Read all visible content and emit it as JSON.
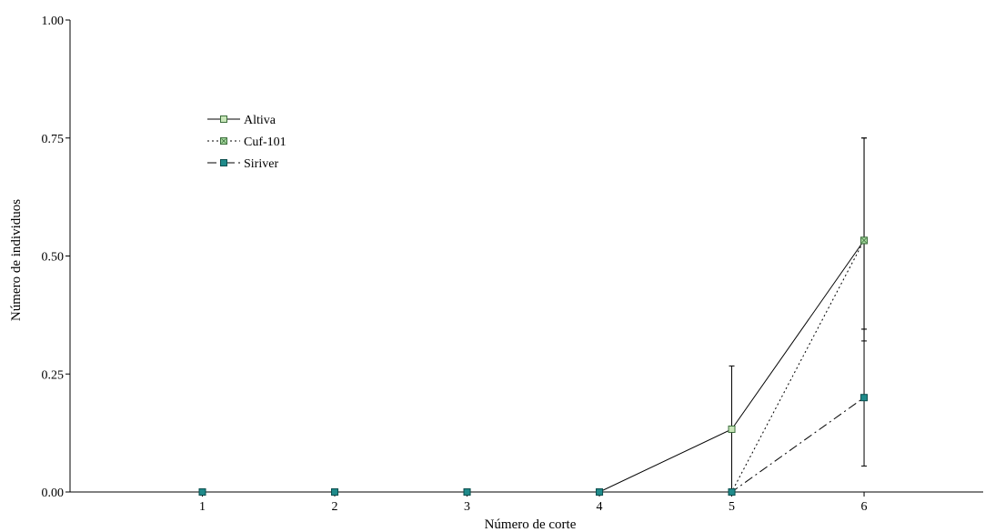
{
  "chart_data": {
    "type": "line",
    "xlabel": "Número de corte",
    "ylabel": "Número de individuos",
    "xlim": [
      0,
      6.9
    ],
    "ylim": [
      0,
      1.0
    ],
    "x_ticks": [
      "1",
      "2",
      "3",
      "4",
      "5",
      "6"
    ],
    "y_ticks": [
      "0.00",
      "0.25",
      "0.50",
      "0.75",
      "1.00"
    ],
    "y_tick_values": [
      0,
      0.25,
      0.5,
      0.75,
      1.0
    ],
    "grid": false,
    "legend_position": "top-left",
    "x": [
      1,
      2,
      3,
      4,
      5,
      6
    ],
    "series": [
      {
        "name": "Altiva",
        "values": [
          0,
          0,
          0,
          0,
          0.133,
          0.533
        ],
        "err_low": [
          null,
          null,
          null,
          null,
          0,
          0.345
        ],
        "err_high": [
          null,
          null,
          null,
          null,
          0.267,
          0.75
        ],
        "line_style": "solid",
        "marker_fill": "#c8e6b8",
        "marker_stroke": "#3c6e3c",
        "marker_pattern": "none"
      },
      {
        "name": "Cuf-101",
        "values": [
          0,
          0,
          0,
          0,
          0,
          0.533
        ],
        "err_low": [
          null,
          null,
          null,
          null,
          null,
          0.32
        ],
        "err_high": [
          null,
          null,
          null,
          null,
          null,
          0.75
        ],
        "line_style": "dotted",
        "marker_fill": "#a8dca0",
        "marker_stroke": "#3c6e3c",
        "marker_pattern": "cross"
      },
      {
        "name": "Siriver",
        "values": [
          0,
          0,
          0,
          0,
          0,
          0.2
        ],
        "err_low": [
          null,
          null,
          null,
          null,
          null,
          0.055
        ],
        "err_high": [
          null,
          null,
          null,
          null,
          null,
          0.345
        ],
        "line_style": "dashdot",
        "marker_fill": "#1f8a8a",
        "marker_stroke": "#0b4e4e",
        "marker_pattern": "none"
      }
    ]
  }
}
